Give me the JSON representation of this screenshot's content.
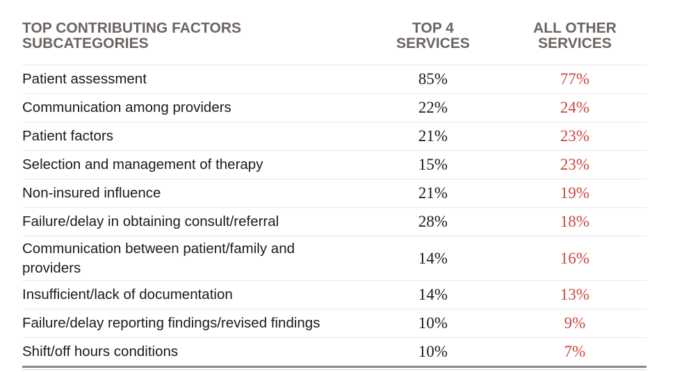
{
  "table": {
    "headers": {
      "factor": "TOP CONTRIBUTING FACTORS SUBCATEGORIES",
      "factor_line1": "TOP CONTRIBUTING FACTORS",
      "factor_line2": "SUBCATEGORIES",
      "top4_line1": "TOP 4",
      "top4_line2": "SERVICES",
      "other_line1": "ALL OTHER",
      "other_line2": "SERVICES"
    },
    "rows": [
      {
        "factor": "Patient assessment",
        "top4": "85%",
        "other": "77%"
      },
      {
        "factor": "Communication among providers",
        "top4": "22%",
        "other": "24%"
      },
      {
        "factor": "Patient factors",
        "top4": "21%",
        "other": "23%"
      },
      {
        "factor": "Selection and management of therapy",
        "top4": "15%",
        "other": "23%"
      },
      {
        "factor": "Non-insured influence",
        "top4": "21%",
        "other": "19%"
      },
      {
        "factor": "Failure/delay in obtaining consult/referral",
        "top4": "28%",
        "other": "18%"
      },
      {
        "factor": "Communication between patient/family and providers",
        "top4": "14%",
        "other": "16%"
      },
      {
        "factor": "Insufficient/lack of documentation",
        "top4": "14%",
        "other": "13%"
      },
      {
        "factor": "Failure/delay reporting findings/revised findings",
        "top4": "10%",
        "other": "9%"
      },
      {
        "factor": "Shift/off hours conditions",
        "top4": "10%",
        "other": "7%"
      }
    ]
  },
  "colors": {
    "header_text": "#6b6460",
    "body_text": "#1a1a1a",
    "other_values": "#c9463d",
    "row_divider": "#e6e6e6"
  }
}
